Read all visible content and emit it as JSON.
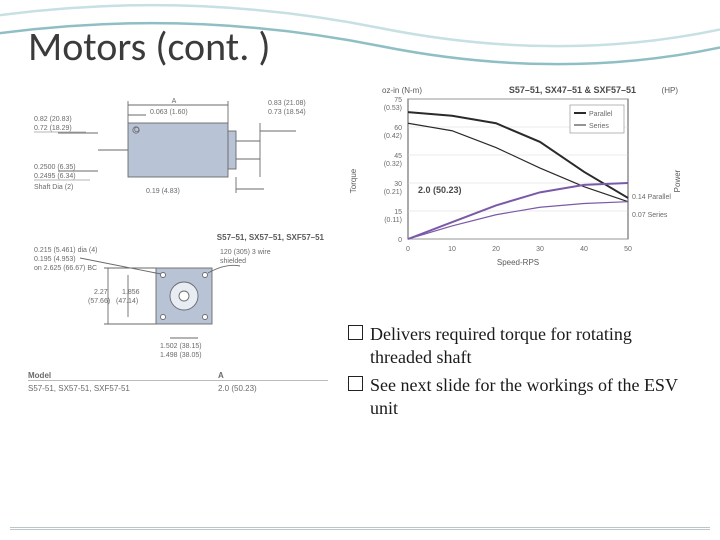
{
  "title": "Motors (cont. )",
  "bullets": [
    "Delivers required torque for rotating threaded shaft",
    "See next slide for the workings of the ESV unit"
  ],
  "side_drawing": {
    "labels": {
      "top_A": "A",
      "top_offset": "0.063 (1.60)",
      "right_top1": "0.83 (21.08)",
      "right_top2": "0.73 (18.54)",
      "left_top1": "0.82 (20.83)",
      "left_top2": "0.72 (18.29)",
      "left_bot1": "0.2500 (6.35)",
      "left_bot2": "0.2495 (6.34)",
      "left_bot3": "Shaft Dia (2)",
      "right_bot": "0.19 (4.83)",
      "inner_circle": "O"
    },
    "body_color": "#b8c3d6",
    "line_color": "#6a6a6a"
  },
  "face_drawing": {
    "labels": {
      "title": "S57–51, SX57–51, SXF57–51",
      "hole1": "0.215 (5.461) dia (4)",
      "hole2": "0.195 (4.953)",
      "hole3": "on 2.625 (66.67) BC",
      "wire1": "120 (305) 3 wire",
      "wire2": "shielded",
      "dim1a": "2.27",
      "dim1b": "(57.66)",
      "dim2a": "1.856",
      "dim2b": "(47.14)",
      "bot1": "1.502 (38.15)",
      "bot2": "1.498 (38.05)"
    },
    "body_color": "#b8c3d6",
    "line_color": "#6a6a6a"
  },
  "model_table": {
    "headers": [
      "Model",
      "A"
    ],
    "row": [
      "S57-51, SX57-51, SXF57-51",
      "2.0 (50.23)"
    ]
  },
  "chart": {
    "title": "S57–51, SX47–51 & SXF57–51",
    "yleft_label": "Torque",
    "yleft_unit": "oz-in (N-m)",
    "yright_label": "Power",
    "yright_unit": "(HP)",
    "x_label": "Speed-RPS",
    "y_ticks": [
      {
        "v": 75,
        "l": "75",
        "sub": "(0.53)"
      },
      {
        "v": 60,
        "l": "60",
        "sub": "(0.42)"
      },
      {
        "v": 45,
        "l": "45",
        "sub": "(0.32)"
      },
      {
        "v": 30,
        "l": "30",
        "sub": "(0.21)"
      },
      {
        "v": 15,
        "l": "15",
        "sub": "(0.11)"
      },
      {
        "v": 0,
        "l": "0",
        "sub": ""
      }
    ],
    "x_ticks": [
      0,
      10,
      20,
      30,
      40,
      50
    ],
    "annotation": "2.0 (50.23)",
    "legend": [
      {
        "text": "Parallel",
        "color": "#2a2a2a"
      },
      {
        "text": "Series",
        "color": "#2a2a2a"
      }
    ],
    "right_notes": [
      "0.14 Parallel",
      "0.07 Series"
    ],
    "series": [
      {
        "name": "parallel-torque",
        "color": "#2a2a2a",
        "width": 2,
        "points": [
          [
            0,
            68
          ],
          [
            10,
            66
          ],
          [
            20,
            62
          ],
          [
            30,
            52
          ],
          [
            40,
            36
          ],
          [
            50,
            22
          ]
        ]
      },
      {
        "name": "series-torque",
        "color": "#2a2a2a",
        "width": 1.2,
        "points": [
          [
            0,
            62
          ],
          [
            10,
            58
          ],
          [
            20,
            49
          ],
          [
            30,
            38
          ],
          [
            40,
            28
          ],
          [
            50,
            20
          ]
        ]
      },
      {
        "name": "parallel-power",
        "color": "#7a5aa8",
        "width": 2,
        "points": [
          [
            0,
            0
          ],
          [
            10,
            9
          ],
          [
            20,
            18
          ],
          [
            30,
            25
          ],
          [
            40,
            29
          ],
          [
            50,
            30
          ]
        ]
      },
      {
        "name": "series-power",
        "color": "#7a5aa8",
        "width": 1.2,
        "points": [
          [
            0,
            0
          ],
          [
            10,
            7
          ],
          [
            20,
            13
          ],
          [
            30,
            17
          ],
          [
            40,
            19
          ],
          [
            50,
            20
          ]
        ]
      }
    ],
    "background": "#ffffff",
    "grid_color": "#d8d8d8",
    "axis_color": "#555555"
  },
  "wave": {
    "top_color": "#c6e0e3",
    "bottom_color": "#8fbfc4"
  }
}
